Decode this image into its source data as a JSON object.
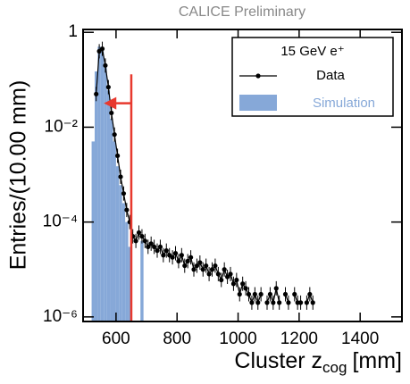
{
  "chart_data": {
    "type": "histogram",
    "title": "CALICE Preliminary",
    "xlabel": {
      "text": "Cluster z",
      "sub": "cog",
      "unit": "[mm]"
    },
    "ylabel": "Entries/(10.00 mm)",
    "legend_title": "15 GeV e⁺",
    "legend": "upper right",
    "log_y": true,
    "xlim": [
      492,
      1537
    ],
    "ylim": [
      8e-07,
      1.15
    ],
    "xticks": [
      600,
      800,
      1000,
      1200,
      1400
    ],
    "yticks": [
      1,
      {
        "value": 0.01,
        "label": "10⁻²"
      },
      {
        "value": 0.0001,
        "label": "10⁻⁴"
      },
      {
        "value": 1e-06,
        "label": "10⁻⁶"
      }
    ],
    "bins": [
      510,
      520,
      530,
      540,
      550,
      560,
      570,
      580,
      590,
      600,
      610,
      620,
      630,
      640,
      650,
      660,
      670,
      680,
      690,
      700,
      710,
      720,
      730,
      740,
      750,
      760,
      770,
      780,
      790,
      800,
      810,
      820,
      830,
      840,
      850,
      860,
      870,
      880,
      890,
      900,
      910,
      920,
      930,
      940,
      950,
      960,
      970,
      980,
      990,
      1000,
      1010,
      1020,
      1030,
      1040,
      1050,
      1060,
      1070,
      1080,
      1090,
      1100,
      1110,
      1120,
      1130,
      1140,
      1150,
      1160,
      1170,
      1180,
      1190,
      1200,
      1210,
      1220,
      1230,
      1240,
      1250,
      1260
    ],
    "series": [
      {
        "name": "Simulation",
        "color": "#86a8d8",
        "style": "fill",
        "values": [
          null,
          0.005,
          0.15,
          0.5,
          0.4,
          0.18,
          0.06,
          0.015,
          0.005,
          0.0015,
          0.0006,
          0.00025,
          0.0001,
          3e-05,
          null,
          null,
          null,
          4e-05,
          null,
          null,
          null,
          null,
          null,
          null,
          null,
          null,
          null,
          null,
          null,
          null,
          null,
          null,
          null,
          null,
          null,
          null,
          null,
          null,
          null,
          null,
          null,
          null,
          null,
          null,
          null,
          null,
          null,
          null,
          null,
          null,
          null,
          null,
          null,
          null,
          null,
          null,
          null,
          null,
          null,
          null,
          null,
          null,
          null,
          null,
          null,
          null,
          null,
          null,
          null,
          null,
          null,
          null,
          null,
          null,
          null
        ]
      },
      {
        "name": "Data",
        "color": "#000000",
        "style": "points",
        "values": [
          null,
          null,
          0.05,
          0.4,
          0.45,
          0.2,
          0.07,
          0.02,
          0.007,
          0.0025,
          0.0009,
          0.0004,
          0.00018,
          0.0001,
          5e-05,
          4e-05,
          6e-05,
          5e-05,
          4e-05,
          3e-05,
          3.5e-05,
          3e-05,
          2.5e-05,
          3e-05,
          2e-05,
          2.5e-05,
          2e-05,
          1.8e-05,
          2.2e-05,
          1.5e-05,
          2e-05,
          1.2e-05,
          1.5e-05,
          1.8e-05,
          1e-05,
          1.2e-05,
          1.4e-05,
          1e-05,
          1.2e-05,
          8e-06,
          1e-05,
          1.2e-05,
          8e-06,
          6e-06,
          1e-05,
          7e-06,
          8e-06,
          5e-06,
          6e-06,
          3e-06,
          5e-06,
          4e-06,
          3e-06,
          2e-06,
          3e-06,
          2e-06,
          3e-06,
          null,
          2e-06,
          3e-06,
          2e-06,
          4e-06,
          2e-06,
          null,
          3e-06,
          2e-06,
          null,
          3e-06,
          2e-06,
          2e-06,
          null,
          2e-06,
          3e-06,
          2e-06,
          null
        ]
      }
    ],
    "cut": {
      "value": 650,
      "top": 0.13,
      "arrow_to": 560,
      "arrow_y": 0.032,
      "color": "#e8392e"
    }
  }
}
